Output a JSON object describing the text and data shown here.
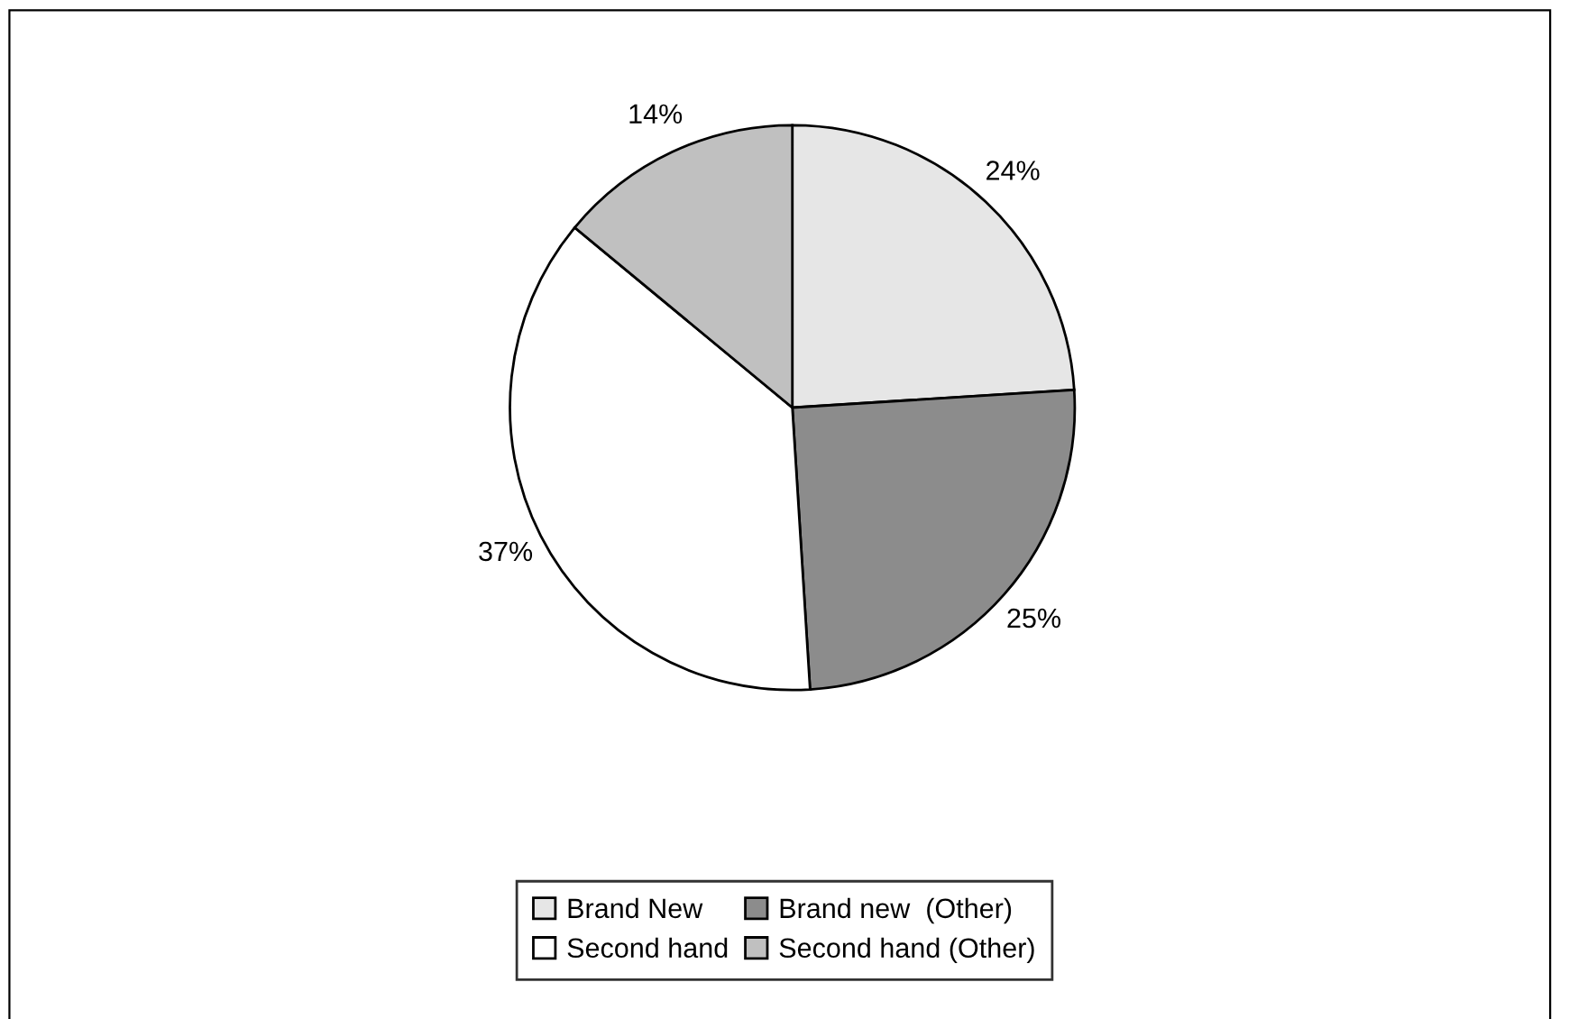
{
  "chart_data": {
    "type": "pie",
    "categories": [
      "Brand New",
      "Brand new  (Other)",
      "Second hand",
      "Second hand (Other)"
    ],
    "values": [
      24,
      25,
      37,
      14
    ],
    "colors": [
      "#e6e6e6",
      "#8c8c8c",
      "#ffffff",
      "#c0c0c0"
    ],
    "value_labels": [
      "24%",
      "25%",
      "37%",
      "14%"
    ],
    "legend": "bottom"
  }
}
